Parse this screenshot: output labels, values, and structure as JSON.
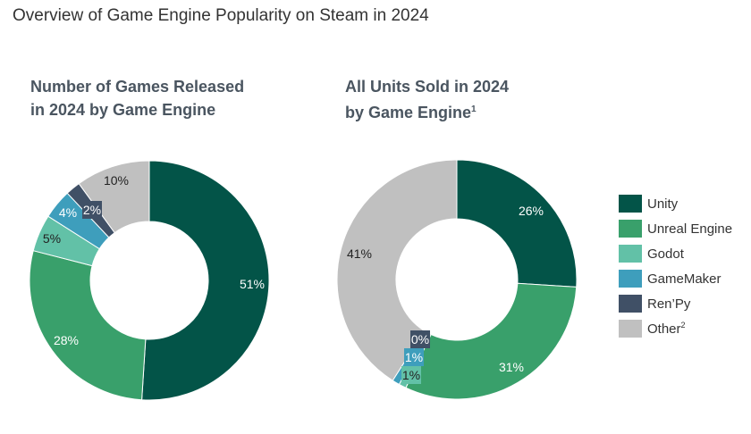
{
  "page_title": "Overview of Game Engine Popularity on Steam in 2024",
  "colors": {
    "Unity": "#035448",
    "Unreal Engine": "#39a06b",
    "Godot": "#62c1a7",
    "GameMaker": "#3e9ebc",
    "Ren’Py": "#405066",
    "Other": "#c0c0c0"
  },
  "legend": {
    "items": [
      "Unity",
      "Unreal Engine",
      "Godot",
      "GameMaker",
      "Ren’Py",
      "Other"
    ],
    "other_footnote": "2"
  },
  "chart_data": [
    {
      "type": "pie",
      "title_line1": "Number of Games Released",
      "title_line2": "in 2024 by Game Engine",
      "title_footnote": "",
      "slices": [
        {
          "name": "Unity",
          "value": 51,
          "label": "51%"
        },
        {
          "name": "Unreal Engine",
          "value": 28,
          "label": "28%"
        },
        {
          "name": "Godot",
          "value": 5,
          "label": "5%"
        },
        {
          "name": "GameMaker",
          "value": 4,
          "label": "4%"
        },
        {
          "name": "Ren’Py",
          "value": 2,
          "label": "2%"
        },
        {
          "name": "Other",
          "value": 10,
          "label": "10%"
        }
      ]
    },
    {
      "type": "pie",
      "title_line1": "All Units Sold in 2024",
      "title_line2": "by Game Engine",
      "title_footnote": "1",
      "slices": [
        {
          "name": "Unity",
          "value": 26,
          "label": "26%"
        },
        {
          "name": "Unreal Engine",
          "value": 31,
          "label": "31%"
        },
        {
          "name": "Godot",
          "value": 1,
          "label": "1%"
        },
        {
          "name": "GameMaker",
          "value": 1,
          "label": "1%"
        },
        {
          "name": "Ren’Py",
          "value": 0,
          "label": "0%"
        },
        {
          "name": "Other",
          "value": 41,
          "label": "41%"
        }
      ]
    }
  ]
}
